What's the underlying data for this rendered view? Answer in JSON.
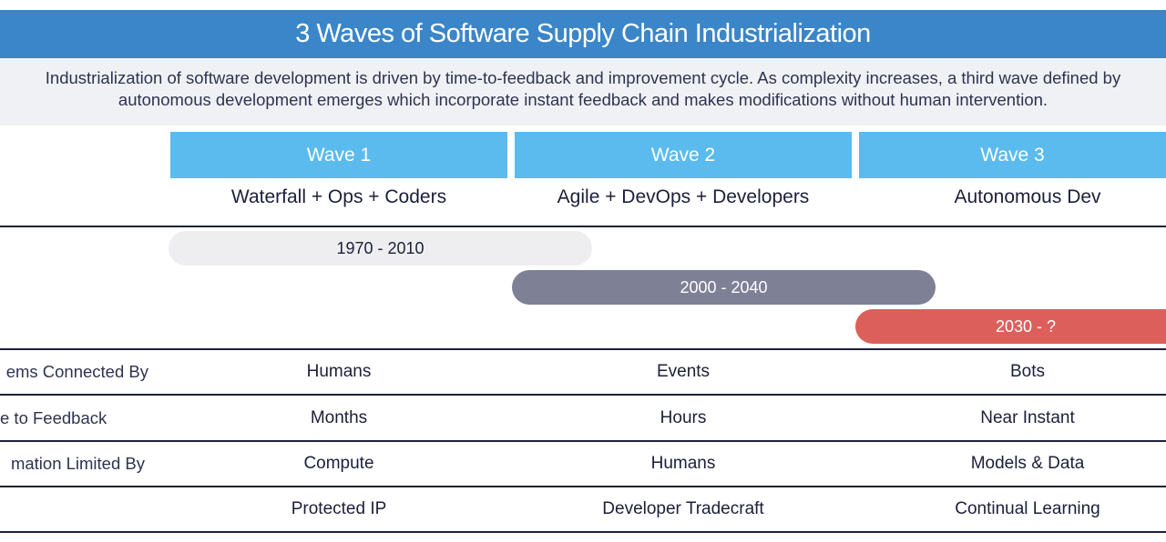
{
  "title": "3 Waves of Software Supply Chain Industrialization",
  "subtitle": "Industrialization of software development is driven by time-to-feedback and improvement cycle. As complexity increases, a third wave defined by autonomous development emerges which incorporate instant feedback and makes modifications without human intervention.",
  "waves": [
    {
      "label": "Wave 1",
      "description": "Waterfall + Ops + Coders",
      "period": "1970 - 2010"
    },
    {
      "label": "Wave 2",
      "description": "Agile + DevOps + Developers",
      "period": "2000 - 2040"
    },
    {
      "label": "Wave 3",
      "description": "Autonomous Dev",
      "period": "2030 - ?"
    }
  ],
  "rows": [
    {
      "label": "ems Connected By",
      "values": [
        "Humans",
        "Events",
        "Bots"
      ]
    },
    {
      "label": "e to Feedback",
      "values": [
        "Months",
        "Hours",
        "Near Instant"
      ]
    },
    {
      "label": "mation Limited By",
      "values": [
        "Compute",
        "Humans",
        "Models & Data"
      ]
    },
    {
      "label": "",
      "values": [
        "Protected IP",
        "Developer Tradecraft",
        "Continual Learning"
      ]
    }
  ],
  "colors": {
    "title_bar": "#3b86c8",
    "wave_header": "#5bbbee",
    "period_wave1": "#eeeef0",
    "period_wave2": "#7e8096",
    "period_wave3": "#dc5f5b"
  }
}
